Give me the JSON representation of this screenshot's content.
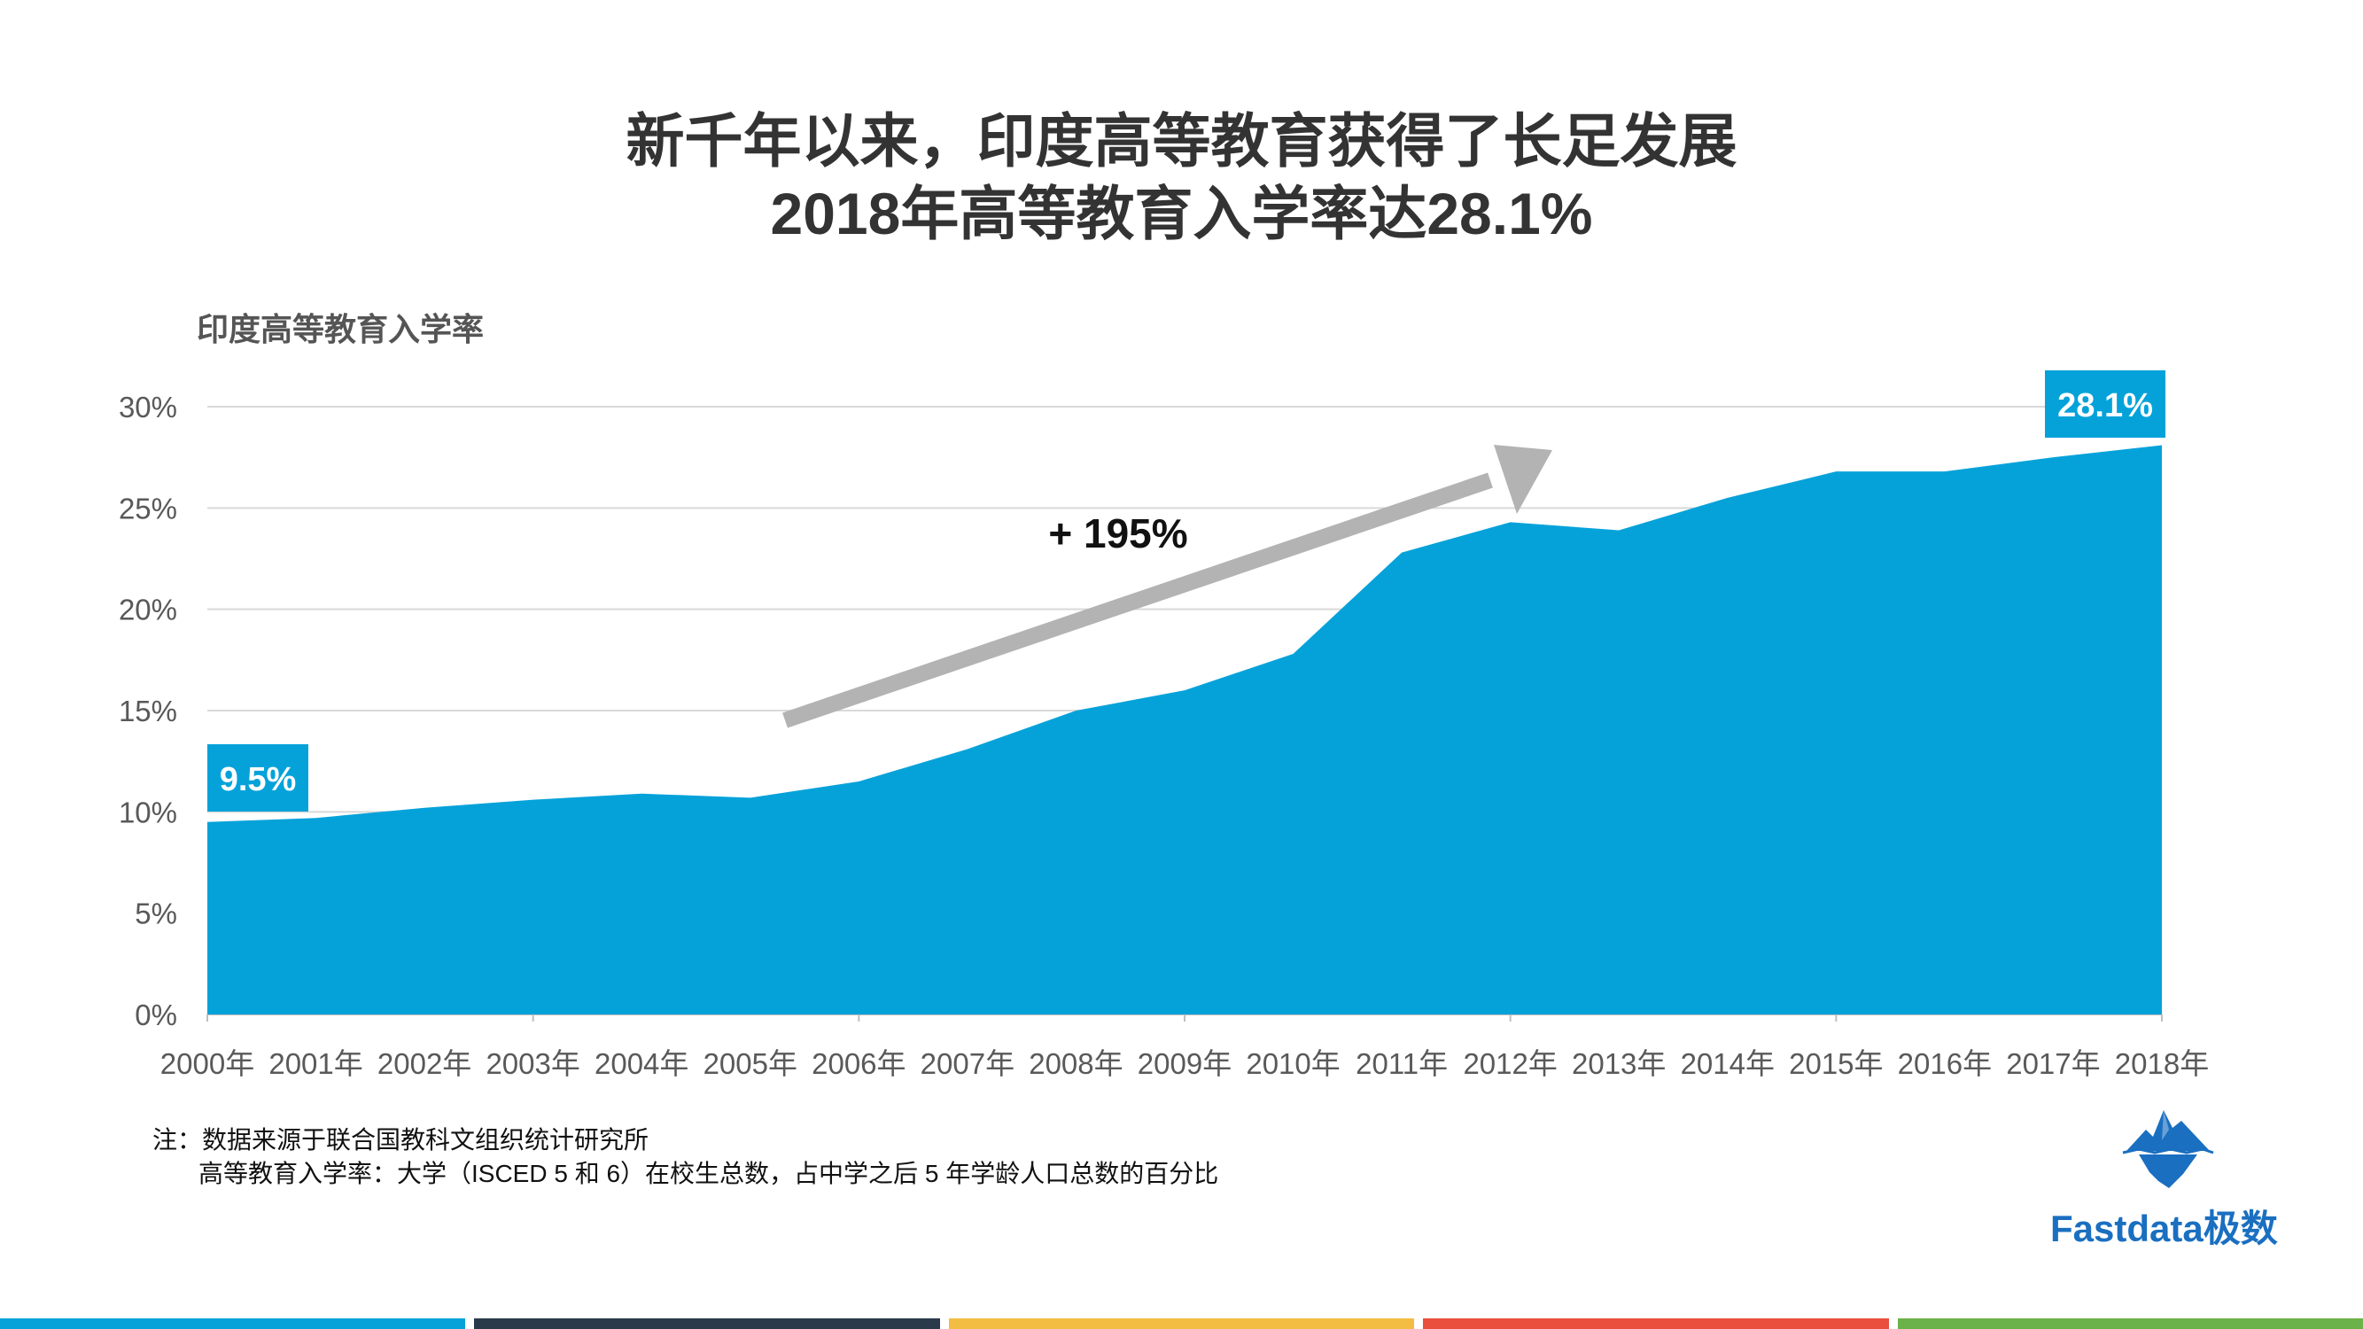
{
  "title": {
    "line1": "新千年以来，印度高等教育获得了长足发展",
    "line2": "2018年高等教育入学率达28.1%"
  },
  "chart_data": {
    "type": "area",
    "ylabel": "印度高等教育入学率",
    "x": [
      "2000年",
      "2001年",
      "2002年",
      "2003年",
      "2004年",
      "2005年",
      "2006年",
      "2007年",
      "2008年",
      "2009年",
      "2010年",
      "2011年",
      "2012年",
      "2013年",
      "2014年",
      "2015年",
      "2016年",
      "2017年",
      "2018年"
    ],
    "values": [
      9.5,
      9.7,
      10.2,
      10.6,
      10.9,
      10.7,
      11.5,
      13.1,
      15.0,
      16.0,
      17.8,
      22.8,
      24.3,
      23.9,
      25.5,
      26.8,
      26.8,
      27.5,
      28.1
    ],
    "ylim": [
      0,
      30
    ],
    "yticks": [
      "0%",
      "5%",
      "10%",
      "15%",
      "20%",
      "25%",
      "30%"
    ],
    "grid": true,
    "series_color": "#05a2da",
    "start_label": "9.5%",
    "end_label": "28.1%",
    "annotation": "+ 195%",
    "arrow_color": "#b3b3b3"
  },
  "footnote": {
    "line1": "注：数据来源于联合国教科文组织统计研究所",
    "line2": "高等教育入学率：大学（ISCED 5 和 6）在校生总数，占中学之后 5 年学龄人口总数的百分比"
  },
  "brand": {
    "name": "Fastdata极数",
    "icon": "iceberg-logo-icon",
    "color": "#1a6fc0"
  },
  "bottom_bar_colors": [
    "#05a2da",
    "#2b3a4a",
    "#f2bd42",
    "#e94f3c",
    "#6cb24a"
  ]
}
